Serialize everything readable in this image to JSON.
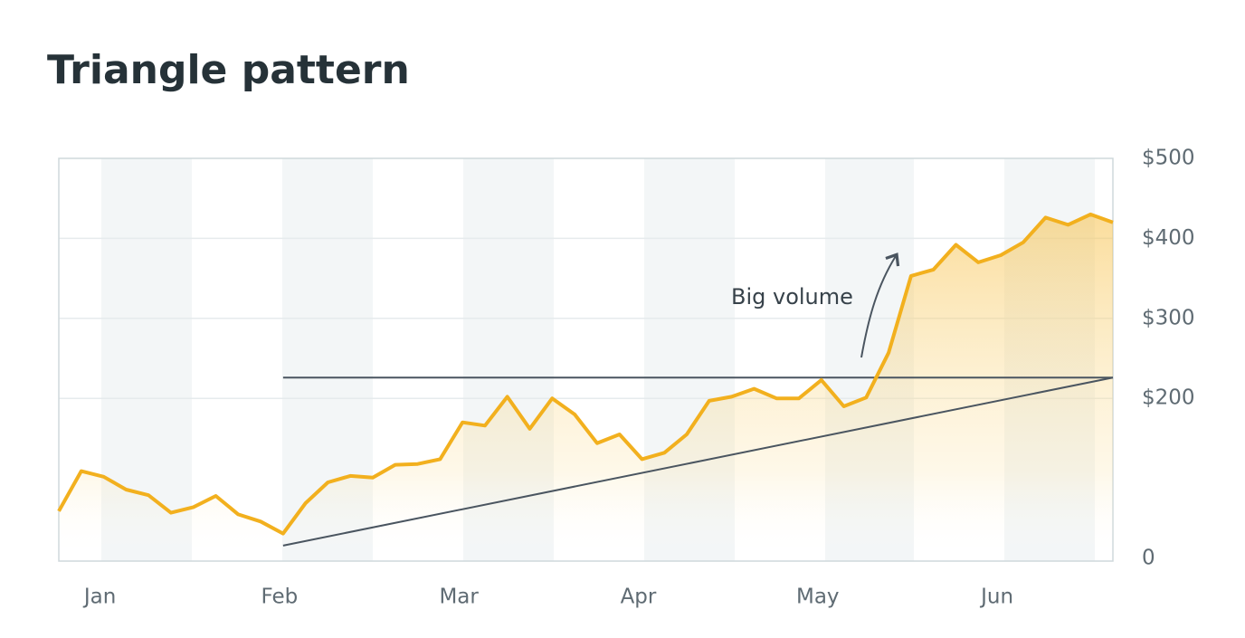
{
  "chart_data": {
    "type": "line",
    "title": "Triangle pattern",
    "categories": [
      null,
      null,
      "Jan",
      null,
      null,
      null,
      null,
      null,
      null,
      null,
      "Feb",
      null,
      null,
      null,
      null,
      null,
      null,
      null,
      "Mar",
      null,
      null,
      null,
      null,
      null,
      null,
      null,
      "Apr",
      null,
      null,
      null,
      null,
      null,
      null,
      null,
      "May",
      null,
      null,
      null,
      null,
      null,
      null,
      null,
      "Jun",
      null,
      null,
      null,
      null,
      null
    ],
    "series": [
      {
        "color": "#f2b01e",
        "values": [
          59,
          109,
          102,
          86,
          79,
          57,
          64,
          78,
          55,
          46,
          31,
          69,
          95,
          103,
          101,
          117,
          118,
          124,
          170,
          166,
          202,
          162,
          200,
          180,
          144,
          155,
          124,
          132,
          155,
          197,
          202,
          212,
          200,
          200,
          223,
          190,
          201,
          257,
          353,
          361,
          392,
          370,
          379,
          395,
          426,
          417,
          430,
          420
        ]
      }
    ],
    "trendlines": [
      {
        "color": "#4a5560",
        "x": [
          10,
          47
        ],
        "values": [
          226,
          226
        ]
      },
      {
        "color": "#4a5560",
        "x": [
          10,
          47
        ],
        "values": [
          16,
          226
        ]
      }
    ],
    "annotation": "Big volume",
    "ylim": [
      0,
      500
    ],
    "yticks": [
      0,
      {
        "value": 200,
        "label": "$200"
      },
      {
        "value": 300,
        "label": "$300"
      },
      {
        "value": 400,
        "label": "$400"
      },
      {
        "value": 500,
        "label": "$500"
      }
    ],
    "grid": true
  }
}
